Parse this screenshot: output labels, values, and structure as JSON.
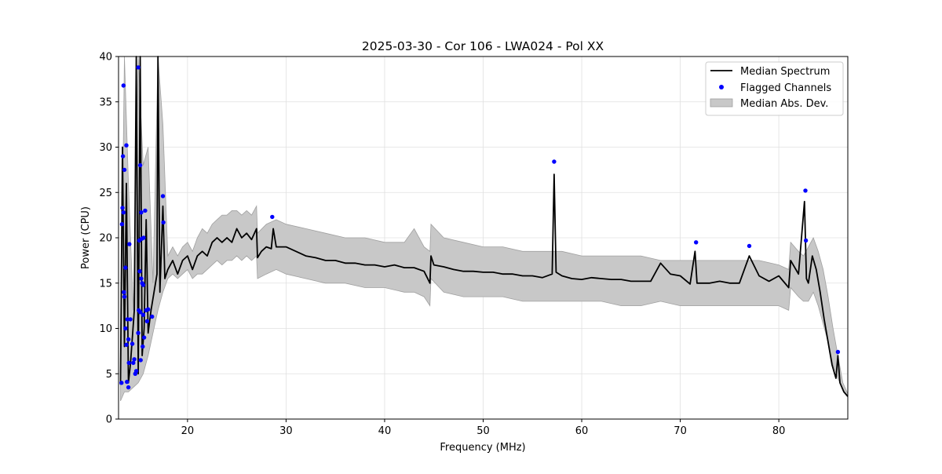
{
  "chart_data": {
    "type": "line",
    "title": "2025-03-30 - Cor 106 - LWA024 - Pol XX",
    "xlabel": "Frequency (MHz)",
    "ylabel": "Power (CPU)",
    "xlim": [
      13.0,
      87.0
    ],
    "ylim": [
      0,
      40
    ],
    "xticks": [
      20,
      30,
      40,
      50,
      60,
      70,
      80
    ],
    "yticks": [
      0,
      5,
      10,
      15,
      20,
      25,
      30,
      35,
      40
    ],
    "grid": true,
    "legend_position": "top-right",
    "colors": {
      "median": "#000000",
      "flagged": "#0000ff",
      "mad_fill": "#c8c8c8",
      "mad_edge": "#a0a0a0"
    },
    "series": [
      {
        "name": "Median Spectrum",
        "kind": "line",
        "x": [
          13.2,
          13.4,
          13.6,
          13.8,
          14.0,
          14.2,
          14.4,
          14.6,
          14.8,
          15.0,
          15.2,
          15.4,
          15.6,
          15.8,
          16.0,
          16.3,
          16.6,
          16.9,
          17.0,
          17.2,
          17.5,
          17.7,
          18.0,
          18.5,
          19.0,
          19.5,
          20.0,
          20.5,
          21.0,
          21.5,
          22.0,
          22.5,
          23.0,
          23.5,
          24.0,
          24.5,
          25.0,
          25.5,
          26.0,
          26.5,
          27.0,
          27.1,
          27.5,
          28.0,
          28.5,
          28.7,
          29.0,
          29.5,
          30.0,
          31.0,
          32.0,
          33.0,
          34.0,
          35.0,
          36.0,
          37.0,
          38.0,
          39.0,
          40.0,
          41.0,
          42.0,
          43.0,
          44.0,
          44.6,
          44.7,
          45.0,
          46.0,
          47.0,
          48.0,
          49.0,
          50.0,
          51.0,
          52.0,
          53.0,
          54.0,
          55.0,
          56.0,
          57.0,
          57.2,
          57.4,
          58.0,
          59.0,
          60.0,
          61.0,
          62.0,
          63.0,
          64.0,
          65.0,
          66.0,
          67.0,
          68.0,
          69.0,
          70.0,
          71.0,
          71.5,
          71.7,
          72.0,
          73.0,
          74.0,
          75.0,
          76.0,
          77.0,
          78.0,
          79.0,
          80.0,
          81.0,
          81.2,
          82.0,
          82.6,
          82.8,
          83.0,
          83.4,
          83.8,
          84.2,
          84.6,
          85.0,
          85.4,
          85.8,
          86.0,
          86.2,
          86.6,
          87.0
        ],
        "y": [
          3.8,
          30.0,
          8.0,
          26.0,
          4.0,
          6.0,
          9.0,
          12.0,
          40.0,
          5.0,
          40.0,
          7.0,
          10.0,
          22.0,
          9.5,
          12.0,
          14.0,
          16.0,
          40.0,
          14.0,
          23.5,
          15.5,
          16.5,
          17.5,
          16.0,
          17.5,
          18.0,
          16.5,
          18.0,
          18.5,
          18.0,
          19.5,
          20.0,
          19.5,
          20.0,
          19.5,
          21.0,
          20.0,
          20.5,
          19.8,
          21.0,
          17.8,
          18.5,
          19.0,
          18.8,
          21.0,
          19.0,
          19.0,
          19.0,
          18.5,
          18.0,
          17.8,
          17.5,
          17.5,
          17.2,
          17.2,
          17.0,
          17.0,
          16.8,
          17.0,
          16.7,
          16.7,
          16.3,
          15.0,
          18.0,
          17.0,
          16.8,
          16.5,
          16.3,
          16.3,
          16.2,
          16.2,
          16.0,
          16.0,
          15.8,
          15.8,
          15.6,
          16.0,
          27.0,
          16.2,
          15.8,
          15.5,
          15.4,
          15.6,
          15.5,
          15.4,
          15.4,
          15.2,
          15.2,
          15.2,
          17.2,
          16.0,
          15.8,
          14.9,
          18.5,
          15.0,
          15.0,
          15.0,
          15.2,
          15.0,
          15.0,
          18.0,
          15.8,
          15.2,
          15.8,
          14.5,
          17.5,
          16.0,
          24.0,
          15.5,
          15.0,
          18.0,
          16.5,
          14.0,
          11.0,
          8.5,
          6.0,
          4.5,
          7.0,
          4.0,
          3.0,
          2.5
        ]
      },
      {
        "name": "Flagged Channels",
        "kind": "scatter",
        "x": [
          13.3,
          13.35,
          13.4,
          13.45,
          13.5,
          13.5,
          13.55,
          13.6,
          13.6,
          13.7,
          13.7,
          13.8,
          13.8,
          13.85,
          13.9,
          14.0,
          14.0,
          14.05,
          14.1,
          14.2,
          14.4,
          14.5,
          14.6,
          14.7,
          14.8,
          15.0,
          15.0,
          15.05,
          15.1,
          15.15,
          15.2,
          15.2,
          15.25,
          15.3,
          15.3,
          15.35,
          15.4,
          15.45,
          15.5,
          15.5,
          15.55,
          15.6,
          15.7,
          15.8,
          15.9,
          16.0,
          16.4,
          17.5,
          17.55,
          28.6,
          57.2,
          71.6,
          77.0,
          82.7,
          82.75,
          86.0
        ],
        "y": [
          4.0,
          21.5,
          23.3,
          29.0,
          36.8,
          22.8,
          14.0,
          27.5,
          13.5,
          10.0,
          16.7,
          8.2,
          30.2,
          4.1,
          11.0,
          3.5,
          8.8,
          6.2,
          19.3,
          11.0,
          8.3,
          6.2,
          6.6,
          5.0,
          5.3,
          38.8,
          9.5,
          12.0,
          19.7,
          16.3,
          28.0,
          11.8,
          6.5,
          15.5,
          22.8,
          19.9,
          15.0,
          8.0,
          14.8,
          11.5,
          20.0,
          9.0,
          23.0,
          12.0,
          10.8,
          12.1,
          11.3,
          24.6,
          21.7,
          22.3,
          28.4,
          19.5,
          19.1,
          25.2,
          19.7,
          7.4
        ]
      },
      {
        "name": "Median Abs. Dev.",
        "kind": "band",
        "x": [
          13.2,
          13.6,
          14.0,
          14.5,
          15.0,
          15.5,
          16.0,
          16.5,
          17.0,
          17.5,
          18.0,
          18.5,
          19.0,
          19.5,
          20.0,
          20.5,
          21.0,
          21.5,
          22.0,
          22.5,
          23.0,
          23.5,
          24.0,
          24.5,
          25.0,
          25.5,
          26.0,
          26.5,
          27.0,
          27.1,
          28.0,
          29.0,
          30.0,
          32.0,
          34.0,
          36.0,
          38.0,
          40.0,
          42.0,
          43.0,
          44.0,
          44.6,
          44.7,
          46.0,
          48.0,
          50.0,
          52.0,
          54.0,
          56.0,
          57.0,
          58.0,
          60.0,
          62.0,
          64.0,
          66.0,
          68.0,
          70.0,
          71.0,
          72.0,
          74.0,
          76.0,
          78.0,
          80.0,
          81.0,
          81.2,
          82.0,
          82.5,
          83.0,
          83.5,
          84.0,
          84.5,
          85.0,
          85.5,
          86.0,
          86.5,
          87.0
        ],
        "lower": [
          2.0,
          3.0,
          3.0,
          3.5,
          4.0,
          5.0,
          7.0,
          9.5,
          12.0,
          14.0,
          15.5,
          16.0,
          15.5,
          16.0,
          16.5,
          15.5,
          16.0,
          16.0,
          16.5,
          17.0,
          17.5,
          17.0,
          17.5,
          17.5,
          18.0,
          17.5,
          18.0,
          17.5,
          18.0,
          15.5,
          16.0,
          16.5,
          16.0,
          15.5,
          15.0,
          15.0,
          14.5,
          14.5,
          14.0,
          14.0,
          13.5,
          12.5,
          15.5,
          14.0,
          13.5,
          13.5,
          13.5,
          13.0,
          13.0,
          13.0,
          13.0,
          13.0,
          13.0,
          12.5,
          12.5,
          13.0,
          12.5,
          12.5,
          12.5,
          12.5,
          12.5,
          12.5,
          12.5,
          12.0,
          14.5,
          13.5,
          13.0,
          13.0,
          14.0,
          12.5,
          10.5,
          8.5,
          6.0,
          4.5,
          3.2,
          2.4
        ],
        "upper": [
          5.0,
          40.0,
          26.0,
          12.0,
          40.0,
          28.0,
          30.0,
          15.0,
          40.0,
          32.5,
          18.0,
          19.0,
          18.0,
          19.0,
          19.5,
          18.5,
          20.0,
          21.0,
          20.5,
          21.5,
          22.0,
          22.5,
          22.5,
          23.0,
          23.0,
          22.5,
          23.0,
          22.5,
          23.5,
          20.5,
          21.5,
          22.0,
          21.5,
          21.0,
          20.5,
          20.0,
          20.0,
          19.5,
          19.5,
          21.0,
          19.0,
          18.5,
          21.5,
          20.0,
          19.5,
          19.0,
          19.0,
          18.5,
          18.5,
          18.5,
          18.5,
          18.0,
          18.0,
          18.0,
          18.0,
          17.5,
          17.5,
          17.5,
          17.5,
          17.5,
          17.5,
          17.5,
          17.0,
          16.5,
          19.5,
          18.5,
          18.0,
          19.0,
          20.0,
          18.5,
          16.5,
          13.5,
          10.0,
          7.0,
          4.0,
          2.8
        ]
      }
    ]
  }
}
